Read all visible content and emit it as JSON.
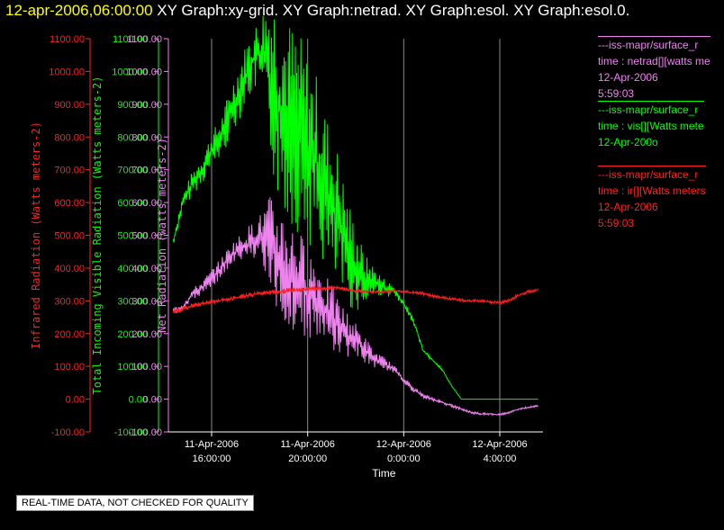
{
  "header": {
    "timestamp": "12-apr-2006,06:00:00",
    "graphs": "XY Graph:xy-grid.  XY Graph:netrad.  XY Graph:esol.  XY Graph:esol.0."
  },
  "colors": {
    "red": "#ff2020",
    "green": "#00ff00",
    "violet": "#ee82ee",
    "grid": "#8a8a8a",
    "background": "#000000"
  },
  "legend": [
    {
      "name": "---iss-mapr/surface_r",
      "desc": "time : netrad[][watts me",
      "date": "12-Apr-2006",
      "time": "5:59:03",
      "color": "#ee82ee"
    },
    {
      "name": "---iss-mapr/surface_r",
      "desc": "time : vis[][Watts mete",
      "date": "12-Apr-200o",
      "time": "",
      "color": "#00ff00"
    },
    {
      "name": "---iss-mapr/surface_r",
      "desc": "time : ir[][Watts meters",
      "date": "12-Apr-2006",
      "time": "5:59:03",
      "color": "#ff2020"
    }
  ],
  "notice": "REAL-TIME DATA, NOT CHECKED FOR QUALITY",
  "chart_data": {
    "type": "line",
    "xlabel": "Time",
    "xlim": [
      14.2,
      29.8
    ],
    "x_ticks": [
      {
        "value": 16,
        "line1": "11-Apr-2006",
        "line2": "16:00:00"
      },
      {
        "value": 20,
        "line1": "11-Apr-2006",
        "line2": "20:00:00"
      },
      {
        "value": 24,
        "line1": "12-Apr-2006",
        "line2": "0:00:00"
      },
      {
        "value": 28,
        "line1": "12-Apr-2006",
        "line2": "4:00:00"
      }
    ],
    "y_axes": [
      {
        "label": "Infrared Radiation (Watts meters-2)",
        "color": "#ff2020",
        "ylim": [
          -100,
          1100
        ]
      },
      {
        "label": "Total Incoming Visible Radiation (Watts meters-2)",
        "color": "#00ff00",
        "ylim": [
          -100,
          1100
        ]
      },
      {
        "label": "Net Radiation (watts meters-2)",
        "color": "#ee82ee",
        "ylim": [
          -100,
          1100
        ]
      }
    ],
    "y_tick_labels": [
      "-100.00",
      "0.00",
      "100.00",
      "200.00",
      "300.00",
      "400.00",
      "500.00",
      "600.00",
      "700.00",
      "800.00",
      "900.00",
      "1000.00",
      "1100.00"
    ],
    "series": [
      {
        "name": "vis",
        "color": "#00ff00",
        "x": [
          14.4,
          14.8,
          15.2,
          15.6,
          16.0,
          16.4,
          16.8,
          17.2,
          17.6,
          18.0,
          18.4,
          18.8,
          19.2,
          19.6,
          20.0,
          20.4,
          20.8,
          21.2,
          21.6,
          22.0,
          22.4,
          22.8,
          23.2,
          23.6,
          24.0,
          24.4,
          24.8,
          25.2,
          25.6,
          26.0,
          26.4,
          26.8,
          27.2,
          27.6,
          28.0,
          28.4,
          28.8,
          29.2,
          29.6
        ],
        "y": [
          480,
          600,
          660,
          700,
          760,
          800,
          880,
          950,
          1020,
          1060,
          1000,
          900,
          850,
          820,
          760,
          720,
          620,
          560,
          460,
          400,
          360,
          360,
          340,
          330,
          290,
          240,
          150,
          120,
          90,
          40,
          0,
          0,
          0,
          0,
          0,
          0,
          0,
          0,
          0
        ],
        "spread": [
          20,
          30,
          40,
          50,
          60,
          70,
          90,
          100,
          110,
          120,
          300,
          350,
          350,
          350,
          320,
          300,
          280,
          250,
          200,
          150,
          90,
          50,
          30,
          20,
          15,
          10,
          8,
          6,
          4,
          2,
          0,
          0,
          0,
          0,
          0,
          0,
          0,
          0,
          0
        ]
      },
      {
        "name": "netrad",
        "color": "#ee82ee",
        "x": [
          14.4,
          14.8,
          15.2,
          15.6,
          16.0,
          16.4,
          16.8,
          17.2,
          17.6,
          18.0,
          18.4,
          18.8,
          19.2,
          19.6,
          20.0,
          20.4,
          20.8,
          21.2,
          21.6,
          22.0,
          22.4,
          22.8,
          23.2,
          23.6,
          24.0,
          24.4,
          24.8,
          25.2,
          25.6,
          26.0,
          26.4,
          26.8,
          27.2,
          27.6,
          28.0,
          28.4,
          28.8,
          29.2,
          29.6
        ],
        "y": [
          270,
          280,
          320,
          340,
          370,
          400,
          440,
          460,
          480,
          500,
          470,
          420,
          380,
          360,
          330,
          300,
          260,
          230,
          200,
          180,
          150,
          120,
          110,
          90,
          60,
          30,
          10,
          0,
          -10,
          -20,
          -30,
          -40,
          -45,
          -45,
          -48,
          -40,
          -30,
          -25,
          -20
        ],
        "spread": [
          10,
          15,
          20,
          25,
          30,
          35,
          40,
          50,
          60,
          70,
          170,
          200,
          200,
          180,
          160,
          150,
          130,
          100,
          80,
          60,
          45,
          30,
          20,
          15,
          12,
          10,
          8,
          6,
          5,
          5,
          4,
          4,
          4,
          4,
          4,
          3,
          3,
          3,
          3
        ]
      },
      {
        "name": "ir",
        "color": "#ff2020",
        "x": [
          14.4,
          14.8,
          15.2,
          15.6,
          16.0,
          16.4,
          16.8,
          17.2,
          17.6,
          18.0,
          18.4,
          18.8,
          19.2,
          19.6,
          20.0,
          20.4,
          20.8,
          21.2,
          21.6,
          22.0,
          22.4,
          22.8,
          23.2,
          23.6,
          24.0,
          24.4,
          24.8,
          25.2,
          25.6,
          26.0,
          26.4,
          26.8,
          27.2,
          27.6,
          28.0,
          28.4,
          28.8,
          29.2,
          29.6
        ],
        "y": [
          265,
          275,
          285,
          292,
          298,
          302,
          306,
          312,
          318,
          322,
          326,
          328,
          330,
          334,
          336,
          338,
          338,
          340,
          335,
          330,
          328,
          328,
          328,
          330,
          328,
          325,
          322,
          315,
          310,
          306,
          302,
          300,
          300,
          296,
          294,
          302,
          318,
          328,
          334
        ],
        "spread": [
          10,
          10,
          8,
          8,
          8,
          8,
          8,
          8,
          8,
          8,
          10,
          10,
          10,
          10,
          10,
          8,
          8,
          8,
          6,
          6,
          6,
          6,
          5,
          5,
          5,
          5,
          5,
          5,
          5,
          5,
          5,
          5,
          5,
          5,
          5,
          5,
          5,
          5,
          5
        ]
      }
    ]
  }
}
